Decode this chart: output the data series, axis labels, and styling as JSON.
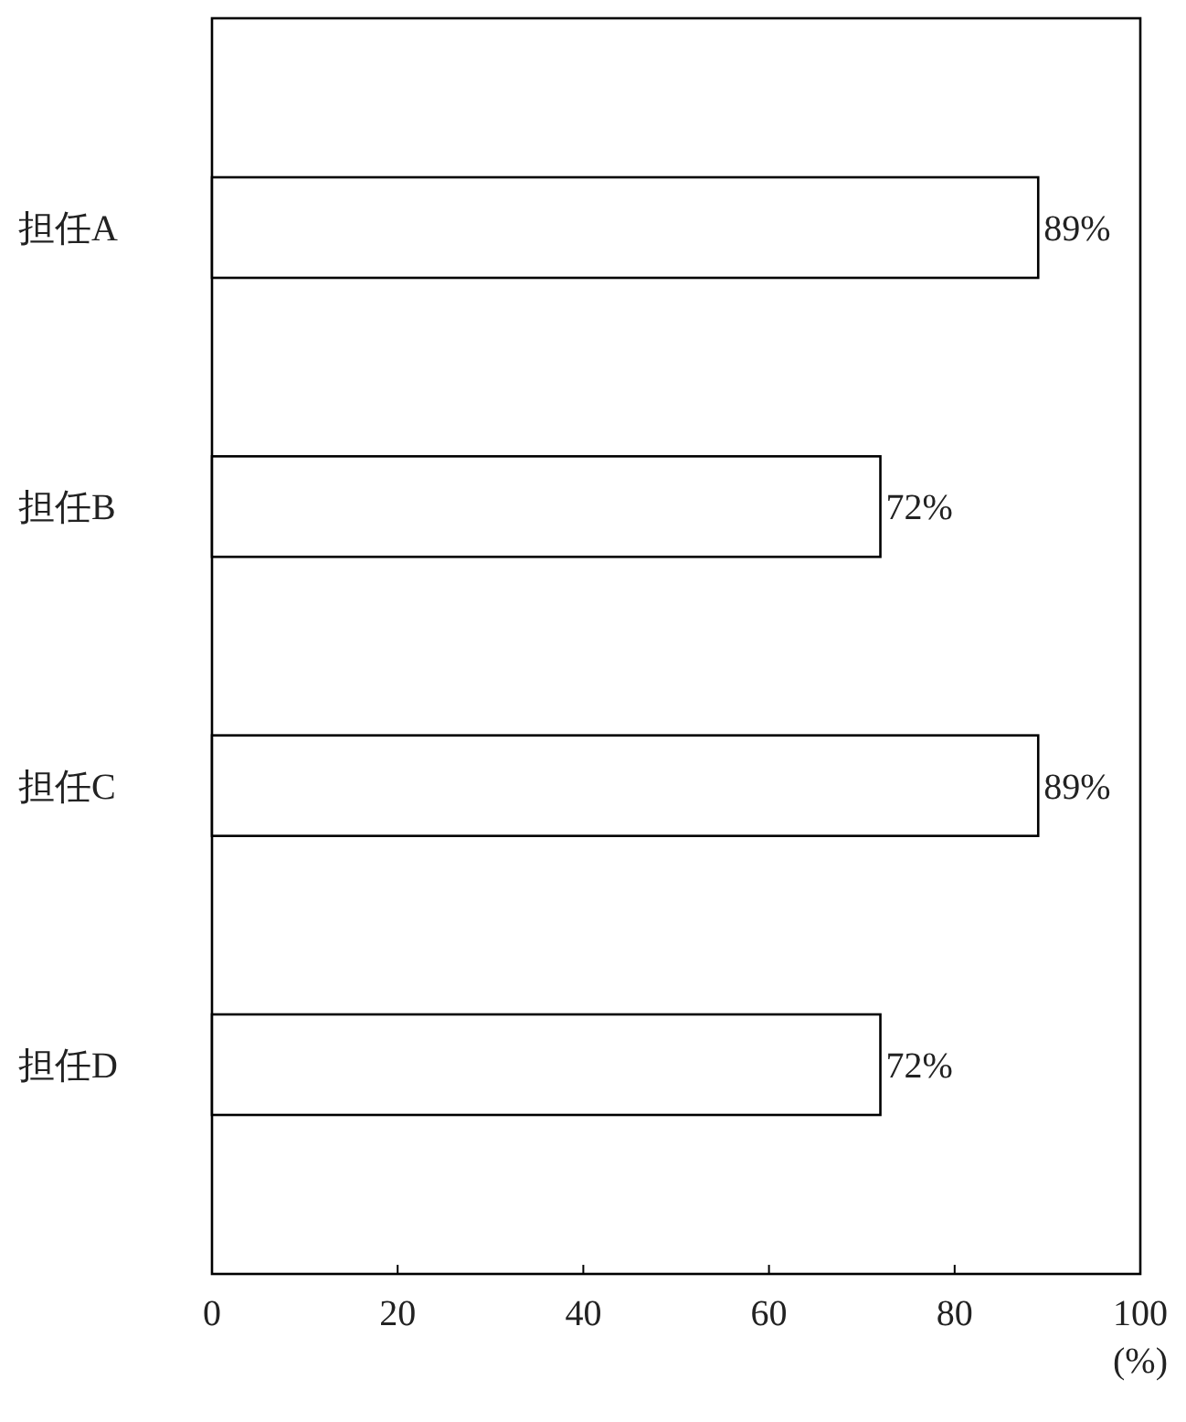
{
  "chart_data": {
    "type": "bar",
    "orientation": "horizontal",
    "categories": [
      "担任A",
      "担任B",
      "担任C",
      "担任D"
    ],
    "values": [
      89,
      72,
      89,
      72
    ],
    "value_labels": [
      "89%",
      "72%",
      "89%",
      "72%"
    ],
    "color": "#ffffff",
    "xlim": [
      0,
      100
    ],
    "xticks": [
      0,
      20,
      40,
      60,
      80,
      100
    ],
    "xlabel": "(%)"
  }
}
